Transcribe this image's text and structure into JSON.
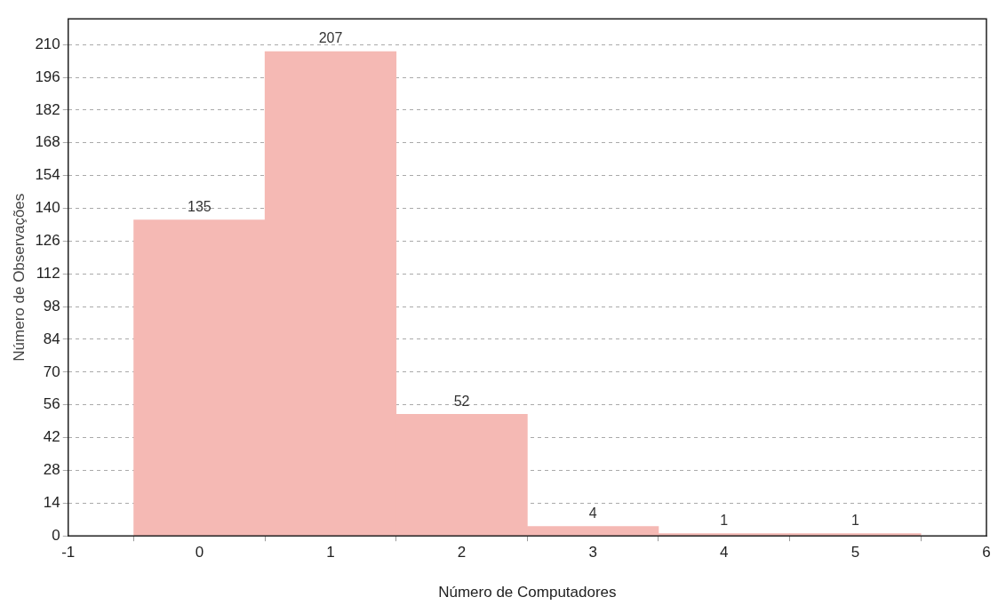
{
  "chart_data": {
    "type": "histogram",
    "xlabel": "Número de Computadores",
    "ylabel": "Número de Observações",
    "bins": [
      -0.5,
      0.5,
      1.5,
      2.5,
      3.5,
      4.5,
      5.5
    ],
    "values": [
      135,
      207,
      52,
      4,
      1,
      1
    ],
    "color": "#f5b9b4",
    "xlim": [
      -1,
      6
    ],
    "xticks": [
      -1,
      0,
      1,
      2,
      3,
      4,
      5,
      6
    ],
    "ylim": [
      0,
      221
    ],
    "yticks": [
      0,
      14,
      28,
      42,
      56,
      70,
      84,
      98,
      112,
      126,
      140,
      154,
      168,
      182,
      196,
      210
    ],
    "grid": "y",
    "data_labels": true,
    "legend": false
  }
}
